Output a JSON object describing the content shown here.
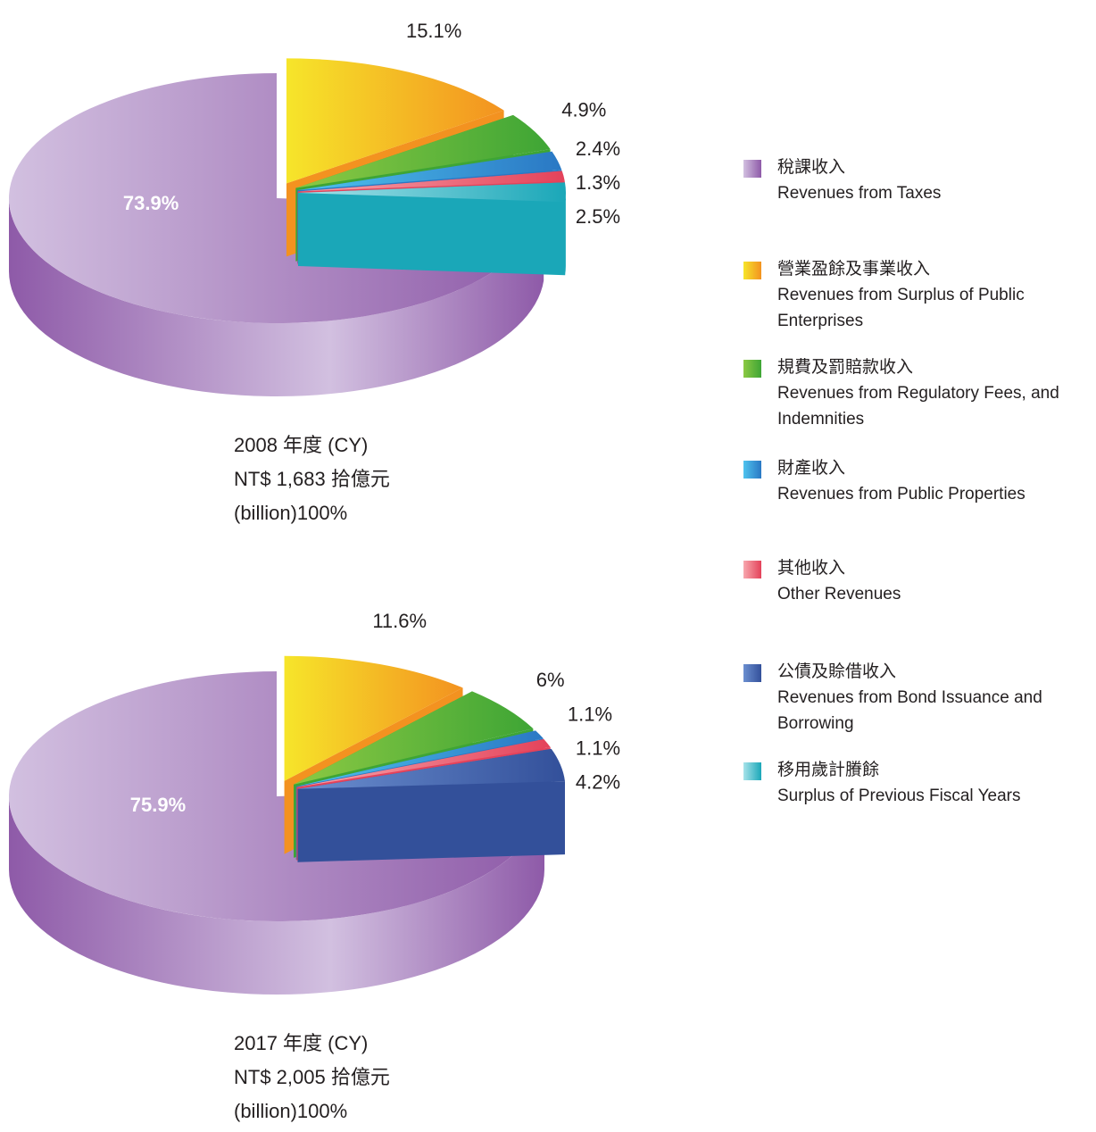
{
  "chart_data": [
    {
      "type": "pie",
      "caption": [
        "2008 年度 (CY)",
        "NT$ 1,683 拾億元",
        "(billion)100%"
      ],
      "values": [
        73.9,
        15.1,
        4.9,
        2.4,
        1.3,
        null,
        2.5
      ],
      "value_labels": [
        "73.9%",
        "15.1%",
        "4.9%",
        "2.4%",
        "1.3%",
        null,
        "2.5%"
      ]
    },
    {
      "type": "pie",
      "caption": [
        "2017 年度 (CY)",
        "NT$ 2,005 拾億元",
        "(billion)100%"
      ],
      "values": [
        75.9,
        11.6,
        6,
        1.1,
        1.1,
        4.2,
        null
      ],
      "value_labels": [
        "75.9%",
        "11.6%",
        "6%",
        "1.1%",
        "1.1%",
        "4.2%",
        null
      ]
    }
  ],
  "legend": [
    {
      "name": "稅課收入",
      "name_en": "Revenues from Taxes",
      "color": "#8e5aa8",
      "light": "#d2c0e0"
    },
    {
      "name": "營業盈餘及事業收入",
      "name_en": "Revenues from Surplus of Public Enterprises",
      "color": "#f39220",
      "light": "#f6e52a"
    },
    {
      "name": "規費及罰賠款收入",
      "name_en": "Revenues from Regulatory Fees, and Indemnities",
      "color": "#3ea535",
      "light": "#8cc943"
    },
    {
      "name": "財產收入",
      "name_en": "Revenues from Public Properties",
      "color": "#2a78c4",
      "light": "#4fc3ee"
    },
    {
      "name": "其他收入",
      "name_en": "Other Revenues",
      "color": "#e4425a",
      "light": "#f7a8ae"
    },
    {
      "name": "公債及賒借收入",
      "name_en": "Revenues from Bond Issuance and Borrowing",
      "color": "#33509a",
      "light": "#6b8fd0"
    },
    {
      "name": "移用歲計賸餘",
      "name_en": "Surplus of Previous Fiscal Years",
      "color": "#1aa7b8",
      "light": "#a8e3ea"
    }
  ]
}
